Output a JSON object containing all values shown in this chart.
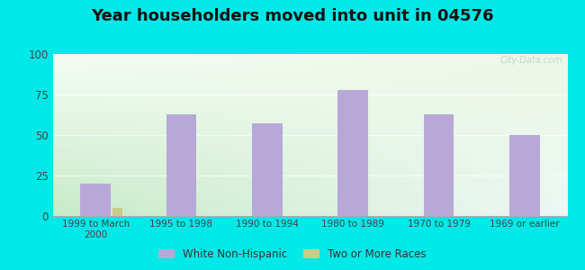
{
  "title": "Year householders moved into unit in 04576",
  "categories": [
    "1999 to March\n2000",
    "1995 to 1998",
    "1990 to 1994",
    "1980 to 1989",
    "1970 to 1979",
    "1969 or earlier"
  ],
  "white_non_hispanic": [
    20,
    63,
    57,
    78,
    63,
    50
  ],
  "two_or_more_races": [
    5,
    0,
    0,
    0,
    0,
    0
  ],
  "bar_color_white": "#b8a8d8",
  "bar_color_two": "#c8cc88",
  "background_outer": "#00e8e8",
  "ylim": [
    0,
    100
  ],
  "yticks": [
    0,
    25,
    50,
    75,
    100
  ],
  "bar_width": 0.35,
  "small_bar_width": 0.12,
  "title_fontsize": 13,
  "legend_labels": [
    "White Non-Hispanic",
    "Two or More Races"
  ],
  "watermark": "City-Data.com"
}
